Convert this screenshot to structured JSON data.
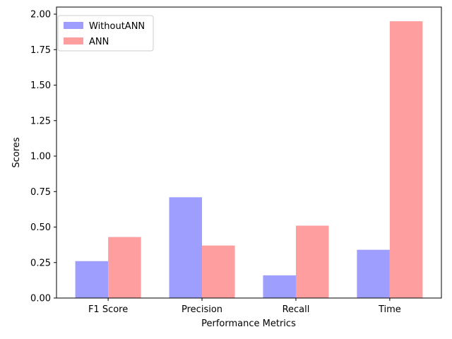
{
  "chart_data": {
    "type": "bar",
    "categories": [
      "F1 Score",
      "Precision",
      "Recall",
      "Time"
    ],
    "series": [
      {
        "name": "WithoutANN",
        "values": [
          0.26,
          0.71,
          0.16,
          0.34
        ],
        "color": "#9e9eff"
      },
      {
        "name": "ANN",
        "values": [
          0.43,
          0.37,
          0.51,
          1.95
        ],
        "color": "#ff9e9e"
      }
    ],
    "xlabel": "Performance Metrics",
    "ylabel": "Scores",
    "ylim": [
      0,
      2.05
    ],
    "yticks": [
      "0.00",
      "0.25",
      "0.50",
      "0.75",
      "1.00",
      "1.25",
      "1.50",
      "1.75",
      "2.00"
    ],
    "grid": false,
    "legend_position": "top-left"
  }
}
